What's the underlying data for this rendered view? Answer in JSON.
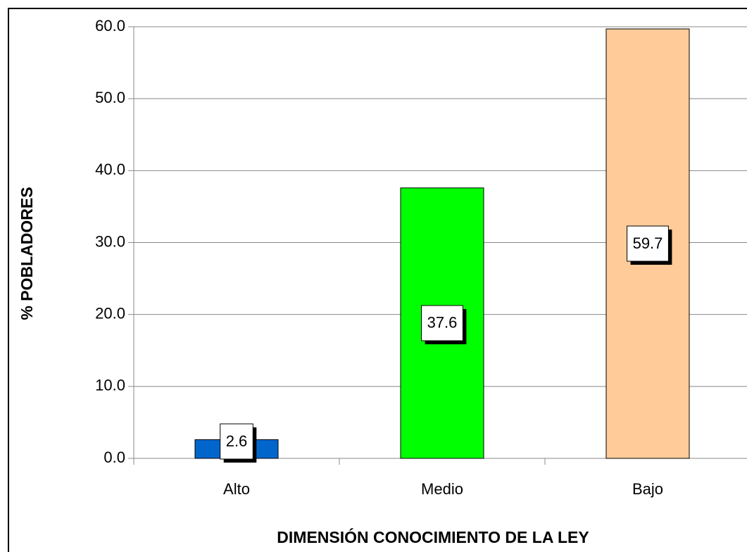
{
  "chart_data": {
    "type": "bar",
    "xlabel": "DIMENSIÓN CONOCIMIENTO DE LA LEY",
    "ylabel": "% POBLADORES",
    "categories": [
      "Alto",
      "Medio",
      "Bajo"
    ],
    "values": [
      2.6,
      37.6,
      59.7
    ],
    "colors": [
      "#0066cc",
      "#00ff00",
      "#ffcc99"
    ],
    "ylim": [
      0,
      60
    ],
    "yticks": [
      {
        "value": 0,
        "label": "0.0"
      },
      {
        "value": 10,
        "label": "10.0"
      },
      {
        "value": 20,
        "label": "20.0"
      },
      {
        "value": 30,
        "label": "30.0"
      },
      {
        "value": 40,
        "label": "40.0"
      },
      {
        "value": 50,
        "label": "50.0"
      },
      {
        "value": 60,
        "label": "60.0"
      }
    ],
    "grid": true
  }
}
